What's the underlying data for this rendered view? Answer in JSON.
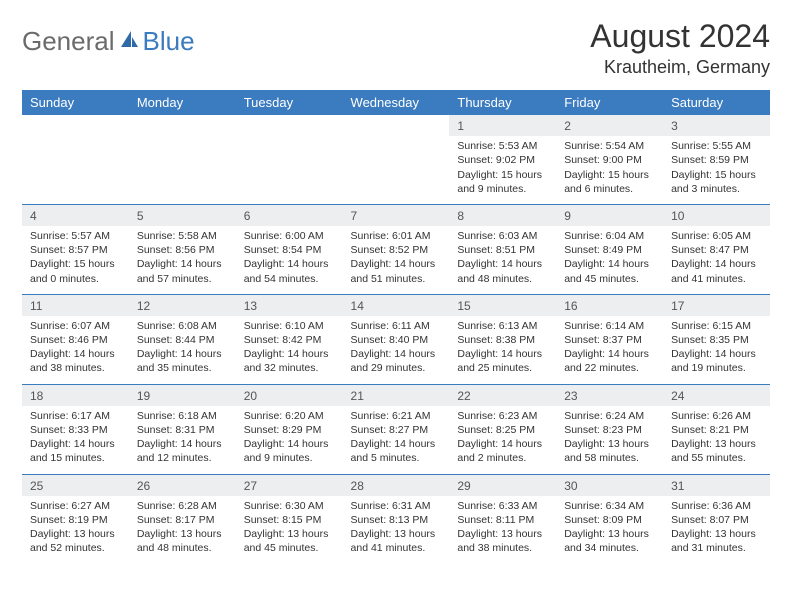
{
  "brand": {
    "part1": "General",
    "part2": "Blue"
  },
  "title": "August 2024",
  "location": "Krautheim, Germany",
  "colors": {
    "accent": "#3b7bbf",
    "header_text": "#ffffff",
    "daynum_bg": "#eceeef",
    "text": "#333333",
    "logo_gray": "#6b6b6b"
  },
  "day_headers": [
    "Sunday",
    "Monday",
    "Tuesday",
    "Wednesday",
    "Thursday",
    "Friday",
    "Saturday"
  ],
  "weeks": [
    [
      null,
      null,
      null,
      null,
      {
        "n": "1",
        "sr": "Sunrise: 5:53 AM",
        "ss": "Sunset: 9:02 PM",
        "dl": "Daylight: 15 hours and 9 minutes."
      },
      {
        "n": "2",
        "sr": "Sunrise: 5:54 AM",
        "ss": "Sunset: 9:00 PM",
        "dl": "Daylight: 15 hours and 6 minutes."
      },
      {
        "n": "3",
        "sr": "Sunrise: 5:55 AM",
        "ss": "Sunset: 8:59 PM",
        "dl": "Daylight: 15 hours and 3 minutes."
      }
    ],
    [
      {
        "n": "4",
        "sr": "Sunrise: 5:57 AM",
        "ss": "Sunset: 8:57 PM",
        "dl": "Daylight: 15 hours and 0 minutes."
      },
      {
        "n": "5",
        "sr": "Sunrise: 5:58 AM",
        "ss": "Sunset: 8:56 PM",
        "dl": "Daylight: 14 hours and 57 minutes."
      },
      {
        "n": "6",
        "sr": "Sunrise: 6:00 AM",
        "ss": "Sunset: 8:54 PM",
        "dl": "Daylight: 14 hours and 54 minutes."
      },
      {
        "n": "7",
        "sr": "Sunrise: 6:01 AM",
        "ss": "Sunset: 8:52 PM",
        "dl": "Daylight: 14 hours and 51 minutes."
      },
      {
        "n": "8",
        "sr": "Sunrise: 6:03 AM",
        "ss": "Sunset: 8:51 PM",
        "dl": "Daylight: 14 hours and 48 minutes."
      },
      {
        "n": "9",
        "sr": "Sunrise: 6:04 AM",
        "ss": "Sunset: 8:49 PM",
        "dl": "Daylight: 14 hours and 45 minutes."
      },
      {
        "n": "10",
        "sr": "Sunrise: 6:05 AM",
        "ss": "Sunset: 8:47 PM",
        "dl": "Daylight: 14 hours and 41 minutes."
      }
    ],
    [
      {
        "n": "11",
        "sr": "Sunrise: 6:07 AM",
        "ss": "Sunset: 8:46 PM",
        "dl": "Daylight: 14 hours and 38 minutes."
      },
      {
        "n": "12",
        "sr": "Sunrise: 6:08 AM",
        "ss": "Sunset: 8:44 PM",
        "dl": "Daylight: 14 hours and 35 minutes."
      },
      {
        "n": "13",
        "sr": "Sunrise: 6:10 AM",
        "ss": "Sunset: 8:42 PM",
        "dl": "Daylight: 14 hours and 32 minutes."
      },
      {
        "n": "14",
        "sr": "Sunrise: 6:11 AM",
        "ss": "Sunset: 8:40 PM",
        "dl": "Daylight: 14 hours and 29 minutes."
      },
      {
        "n": "15",
        "sr": "Sunrise: 6:13 AM",
        "ss": "Sunset: 8:38 PM",
        "dl": "Daylight: 14 hours and 25 minutes."
      },
      {
        "n": "16",
        "sr": "Sunrise: 6:14 AM",
        "ss": "Sunset: 8:37 PM",
        "dl": "Daylight: 14 hours and 22 minutes."
      },
      {
        "n": "17",
        "sr": "Sunrise: 6:15 AM",
        "ss": "Sunset: 8:35 PM",
        "dl": "Daylight: 14 hours and 19 minutes."
      }
    ],
    [
      {
        "n": "18",
        "sr": "Sunrise: 6:17 AM",
        "ss": "Sunset: 8:33 PM",
        "dl": "Daylight: 14 hours and 15 minutes."
      },
      {
        "n": "19",
        "sr": "Sunrise: 6:18 AM",
        "ss": "Sunset: 8:31 PM",
        "dl": "Daylight: 14 hours and 12 minutes."
      },
      {
        "n": "20",
        "sr": "Sunrise: 6:20 AM",
        "ss": "Sunset: 8:29 PM",
        "dl": "Daylight: 14 hours and 9 minutes."
      },
      {
        "n": "21",
        "sr": "Sunrise: 6:21 AM",
        "ss": "Sunset: 8:27 PM",
        "dl": "Daylight: 14 hours and 5 minutes."
      },
      {
        "n": "22",
        "sr": "Sunrise: 6:23 AM",
        "ss": "Sunset: 8:25 PM",
        "dl": "Daylight: 14 hours and 2 minutes."
      },
      {
        "n": "23",
        "sr": "Sunrise: 6:24 AM",
        "ss": "Sunset: 8:23 PM",
        "dl": "Daylight: 13 hours and 58 minutes."
      },
      {
        "n": "24",
        "sr": "Sunrise: 6:26 AM",
        "ss": "Sunset: 8:21 PM",
        "dl": "Daylight: 13 hours and 55 minutes."
      }
    ],
    [
      {
        "n": "25",
        "sr": "Sunrise: 6:27 AM",
        "ss": "Sunset: 8:19 PM",
        "dl": "Daylight: 13 hours and 52 minutes."
      },
      {
        "n": "26",
        "sr": "Sunrise: 6:28 AM",
        "ss": "Sunset: 8:17 PM",
        "dl": "Daylight: 13 hours and 48 minutes."
      },
      {
        "n": "27",
        "sr": "Sunrise: 6:30 AM",
        "ss": "Sunset: 8:15 PM",
        "dl": "Daylight: 13 hours and 45 minutes."
      },
      {
        "n": "28",
        "sr": "Sunrise: 6:31 AM",
        "ss": "Sunset: 8:13 PM",
        "dl": "Daylight: 13 hours and 41 minutes."
      },
      {
        "n": "29",
        "sr": "Sunrise: 6:33 AM",
        "ss": "Sunset: 8:11 PM",
        "dl": "Daylight: 13 hours and 38 minutes."
      },
      {
        "n": "30",
        "sr": "Sunrise: 6:34 AM",
        "ss": "Sunset: 8:09 PM",
        "dl": "Daylight: 13 hours and 34 minutes."
      },
      {
        "n": "31",
        "sr": "Sunrise: 6:36 AM",
        "ss": "Sunset: 8:07 PM",
        "dl": "Daylight: 13 hours and 31 minutes."
      }
    ]
  ]
}
